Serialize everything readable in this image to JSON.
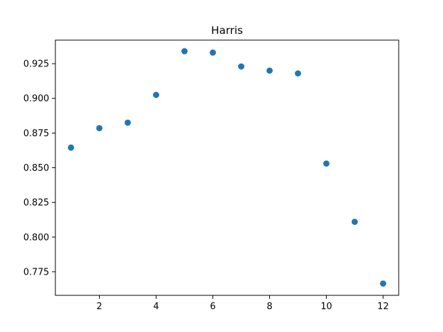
{
  "chart_data": {
    "type": "scatter",
    "title": "Harris",
    "xlabel": "",
    "ylabel": "",
    "xlim": [
      0.45,
      12.55
    ],
    "ylim": [
      0.758,
      0.942
    ],
    "x_ticks": [
      2,
      4,
      6,
      8,
      10,
      12
    ],
    "x_tick_labels": [
      "2",
      "4",
      "6",
      "8",
      "10",
      "12"
    ],
    "y_ticks": [
      0.775,
      0.8,
      0.825,
      0.85,
      0.875,
      0.9,
      0.925
    ],
    "y_tick_labels": [
      "0.775",
      "0.800",
      "0.825",
      "0.850",
      "0.875",
      "0.900",
      "0.925"
    ],
    "grid": false,
    "marker_color": "#1f77b4",
    "series": [
      {
        "x": [
          1,
          2,
          3,
          4,
          5,
          6,
          7,
          8,
          9,
          10,
          11,
          12
        ],
        "y": [
          0.8645,
          0.8785,
          0.8825,
          0.9025,
          0.934,
          0.933,
          0.923,
          0.92,
          0.918,
          0.853,
          0.811,
          0.7665
        ]
      }
    ]
  }
}
